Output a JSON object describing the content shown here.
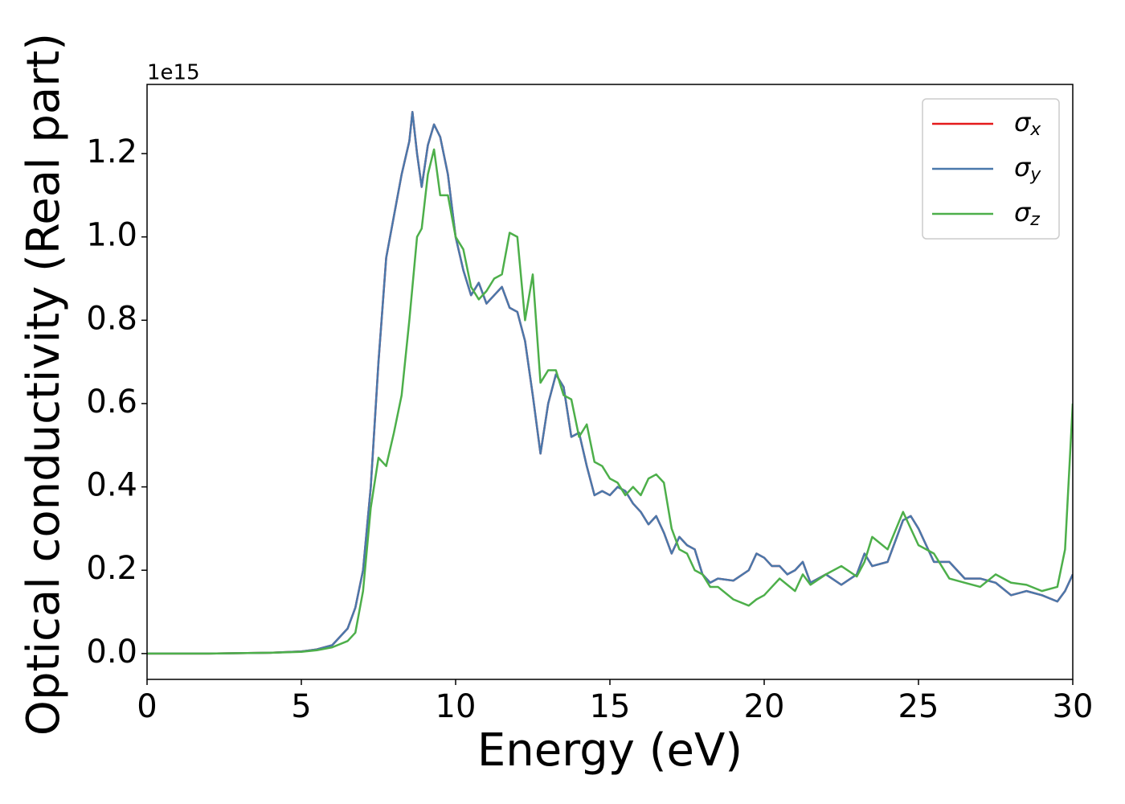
{
  "chart_data": {
    "type": "line",
    "xlabel": "Energy (eV)",
    "ylabel": "Optical conductivity (Real part)",
    "y_axis_offset": "1e15",
    "x": [
      0,
      1,
      2,
      3,
      4,
      5,
      5.5,
      6,
      6.5,
      6.75,
      7,
      7.25,
      7.5,
      7.75,
      8,
      8.25,
      8.5,
      8.6,
      8.75,
      8.9,
      9.1,
      9.3,
      9.5,
      9.75,
      10,
      10.25,
      10.5,
      10.75,
      11,
      11.25,
      11.5,
      11.75,
      12,
      12.25,
      12.5,
      12.75,
      13,
      13.25,
      13.5,
      13.75,
      14,
      14.25,
      14.5,
      14.75,
      15,
      15.25,
      15.5,
      15.75,
      16,
      16.25,
      16.5,
      16.75,
      17,
      17.25,
      17.5,
      17.75,
      18,
      18.25,
      18.5,
      19,
      19.5,
      19.75,
      20,
      20.25,
      20.5,
      20.75,
      21,
      21.25,
      21.5,
      22,
      22.5,
      23,
      23.25,
      23.5,
      24,
      24.5,
      24.75,
      25,
      25.5,
      26,
      26.5,
      27,
      27.5,
      28,
      28.5,
      29,
      29.5,
      29.75,
      30
    ],
    "series": [
      {
        "name": "σx",
        "color": "#e41a1c",
        "values": [
          0,
          0,
          0,
          0.001,
          0.002,
          0.005,
          0.01,
          0.02,
          0.06,
          0.11,
          0.2,
          0.4,
          0.7,
          0.95,
          1.05,
          1.15,
          1.23,
          1.3,
          1.2,
          1.12,
          1.22,
          1.27,
          1.24,
          1.15,
          1.0,
          0.92,
          0.86,
          0.89,
          0.84,
          0.86,
          0.88,
          0.83,
          0.82,
          0.75,
          0.62,
          0.48,
          0.6,
          0.67,
          0.64,
          0.52,
          0.53,
          0.45,
          0.38,
          0.39,
          0.38,
          0.4,
          0.39,
          0.36,
          0.34,
          0.31,
          0.33,
          0.29,
          0.24,
          0.28,
          0.26,
          0.25,
          0.19,
          0.17,
          0.18,
          0.175,
          0.2,
          0.24,
          0.23,
          0.21,
          0.21,
          0.19,
          0.2,
          0.22,
          0.17,
          0.19,
          0.165,
          0.19,
          0.24,
          0.21,
          0.22,
          0.32,
          0.33,
          0.3,
          0.22,
          0.22,
          0.18,
          0.18,
          0.17,
          0.14,
          0.15,
          0.14,
          0.125,
          0.15,
          0.19
        ]
      },
      {
        "name": "σy",
        "color": "#4a78ab",
        "values": [
          0,
          0,
          0,
          0.001,
          0.002,
          0.005,
          0.01,
          0.02,
          0.06,
          0.11,
          0.2,
          0.4,
          0.7,
          0.95,
          1.05,
          1.15,
          1.23,
          1.3,
          1.2,
          1.12,
          1.22,
          1.27,
          1.24,
          1.15,
          1.0,
          0.92,
          0.86,
          0.89,
          0.84,
          0.86,
          0.88,
          0.83,
          0.82,
          0.75,
          0.62,
          0.48,
          0.6,
          0.67,
          0.64,
          0.52,
          0.53,
          0.45,
          0.38,
          0.39,
          0.38,
          0.4,
          0.39,
          0.36,
          0.34,
          0.31,
          0.33,
          0.29,
          0.24,
          0.28,
          0.26,
          0.25,
          0.19,
          0.17,
          0.18,
          0.175,
          0.2,
          0.24,
          0.23,
          0.21,
          0.21,
          0.19,
          0.2,
          0.22,
          0.17,
          0.19,
          0.165,
          0.19,
          0.24,
          0.21,
          0.22,
          0.32,
          0.33,
          0.3,
          0.22,
          0.22,
          0.18,
          0.18,
          0.17,
          0.14,
          0.15,
          0.14,
          0.125,
          0.15,
          0.19
        ]
      },
      {
        "name": "σz",
        "color": "#4daf4a",
        "values": [
          0,
          0,
          0,
          0.001,
          0.002,
          0.004,
          0.008,
          0.015,
          0.03,
          0.05,
          0.15,
          0.35,
          0.47,
          0.45,
          0.53,
          0.62,
          0.8,
          0.88,
          1.0,
          1.02,
          1.15,
          1.21,
          1.1,
          1.1,
          1.0,
          0.97,
          0.88,
          0.85,
          0.87,
          0.9,
          0.91,
          1.01,
          1.0,
          0.8,
          0.91,
          0.65,
          0.68,
          0.68,
          0.62,
          0.61,
          0.52,
          0.55,
          0.46,
          0.45,
          0.42,
          0.41,
          0.38,
          0.4,
          0.38,
          0.42,
          0.43,
          0.41,
          0.3,
          0.25,
          0.24,
          0.2,
          0.19,
          0.16,
          0.16,
          0.13,
          0.115,
          0.13,
          0.14,
          0.16,
          0.18,
          0.165,
          0.15,
          0.19,
          0.165,
          0.19,
          0.21,
          0.185,
          0.22,
          0.28,
          0.25,
          0.34,
          0.3,
          0.26,
          0.24,
          0.18,
          0.17,
          0.16,
          0.19,
          0.17,
          0.165,
          0.15,
          0.16,
          0.25,
          0.6
        ]
      }
    ],
    "xlim": [
      0,
      30
    ],
    "xticks": [
      0,
      5,
      10,
      15,
      20,
      25,
      30
    ],
    "ylim": [
      -0.062,
      1.366
    ],
    "yticks": [
      {
        "value": 0,
        "label": "0.0"
      },
      0.2,
      0.4,
      0.6,
      0.8,
      {
        "value": 1,
        "label": "1.0"
      },
      1.2
    ],
    "legend": "upper right",
    "grid": false
  }
}
